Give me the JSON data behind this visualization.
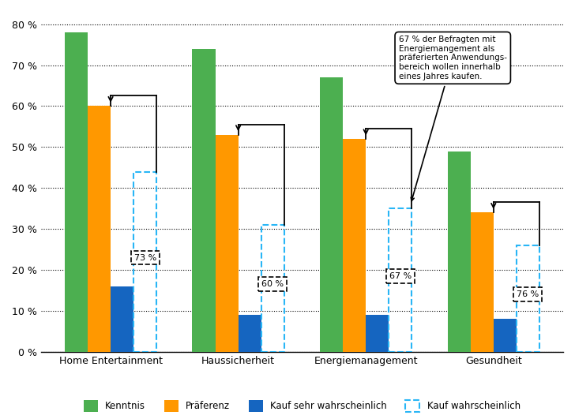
{
  "categories": [
    "Home Entertainment",
    "Haussicherheit",
    "Energiemanagement",
    "Gesundheit"
  ],
  "kenntnis": [
    78,
    74,
    67,
    49
  ],
  "praeferenz": [
    60,
    53,
    52,
    34
  ],
  "kauf_sehr": [
    16,
    9,
    9,
    8
  ],
  "kauf_wahrsch": [
    44,
    31,
    35,
    26
  ],
  "percentages": [
    73,
    60,
    67,
    76
  ],
  "color_kenntnis": "#4CAF50",
  "color_praeferenz": "#FF9800",
  "color_kauf_sehr": "#1565C0",
  "color_kauf_wahrsch": "#29B6F6",
  "bar_width": 0.18,
  "ylim": [
    0,
    83
  ],
  "yticks": [
    0,
    10,
    20,
    30,
    40,
    50,
    60,
    70,
    80
  ],
  "annotation_text": "67 % der Befragten mit\nEnergiemangement als\npräferierten Anwendungs-\nbereich wollen innerhalb\neines Jahres kaufen.",
  "background_color": "#ffffff"
}
